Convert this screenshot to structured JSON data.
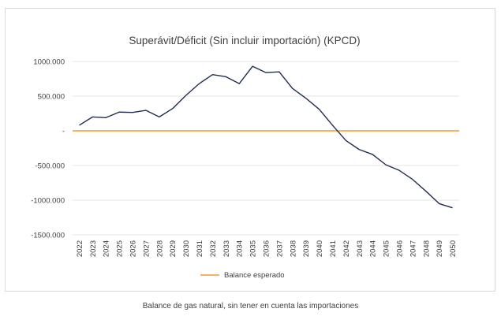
{
  "chart_data": {
    "type": "line",
    "title": "Superávit/Déficit (Sin incluir importación) (KPCD)",
    "xlabel": "",
    "ylabel": "",
    "x": [
      "2022",
      "2023",
      "2024",
      "2025",
      "2026",
      "2027",
      "2028",
      "2029",
      "2030",
      "2031",
      "2032",
      "2033",
      "2034",
      "2035",
      "2036",
      "2037",
      "2038",
      "2039",
      "2040",
      "2041",
      "2042",
      "2043",
      "2044",
      "2045",
      "2046",
      "2047",
      "2048",
      "2049",
      "2050"
    ],
    "ylim": [
      -1500000,
      1000000
    ],
    "yticks": [
      {
        "value": 1000000,
        "label": "1000.000"
      },
      {
        "value": 500000,
        "label": "500.000"
      },
      {
        "value": 0,
        "label": "-"
      },
      {
        "value": -500000,
        "label": "-500.000"
      },
      {
        "value": -1000000,
        "label": "-1000.000"
      },
      {
        "value": -1500000,
        "label": "-1500.000"
      }
    ],
    "grid": true,
    "legend_position": "bottom",
    "series": [
      {
        "color": "#1f2d4e",
        "values": [
          80000,
          200000,
          190000,
          270000,
          265000,
          295000,
          200000,
          320000,
          510000,
          680000,
          810000,
          780000,
          680000,
          930000,
          840000,
          850000,
          610000,
          470000,
          310000,
          80000,
          -140000,
          -270000,
          -340000,
          -490000,
          -570000,
          -700000,
          -870000,
          -1050000,
          -1110000
        ]
      },
      {
        "name": "Balance esperado",
        "color": "#f39c2b",
        "values": [
          0,
          0,
          0,
          0,
          0,
          0,
          0,
          0,
          0,
          0,
          0,
          0,
          0,
          0,
          0,
          0,
          0,
          0,
          0,
          0,
          0,
          0,
          0,
          0,
          0,
          0,
          0,
          0,
          0
        ]
      }
    ]
  },
  "caption": "Balance de gas natural, sin tener en cuenta las importaciones"
}
